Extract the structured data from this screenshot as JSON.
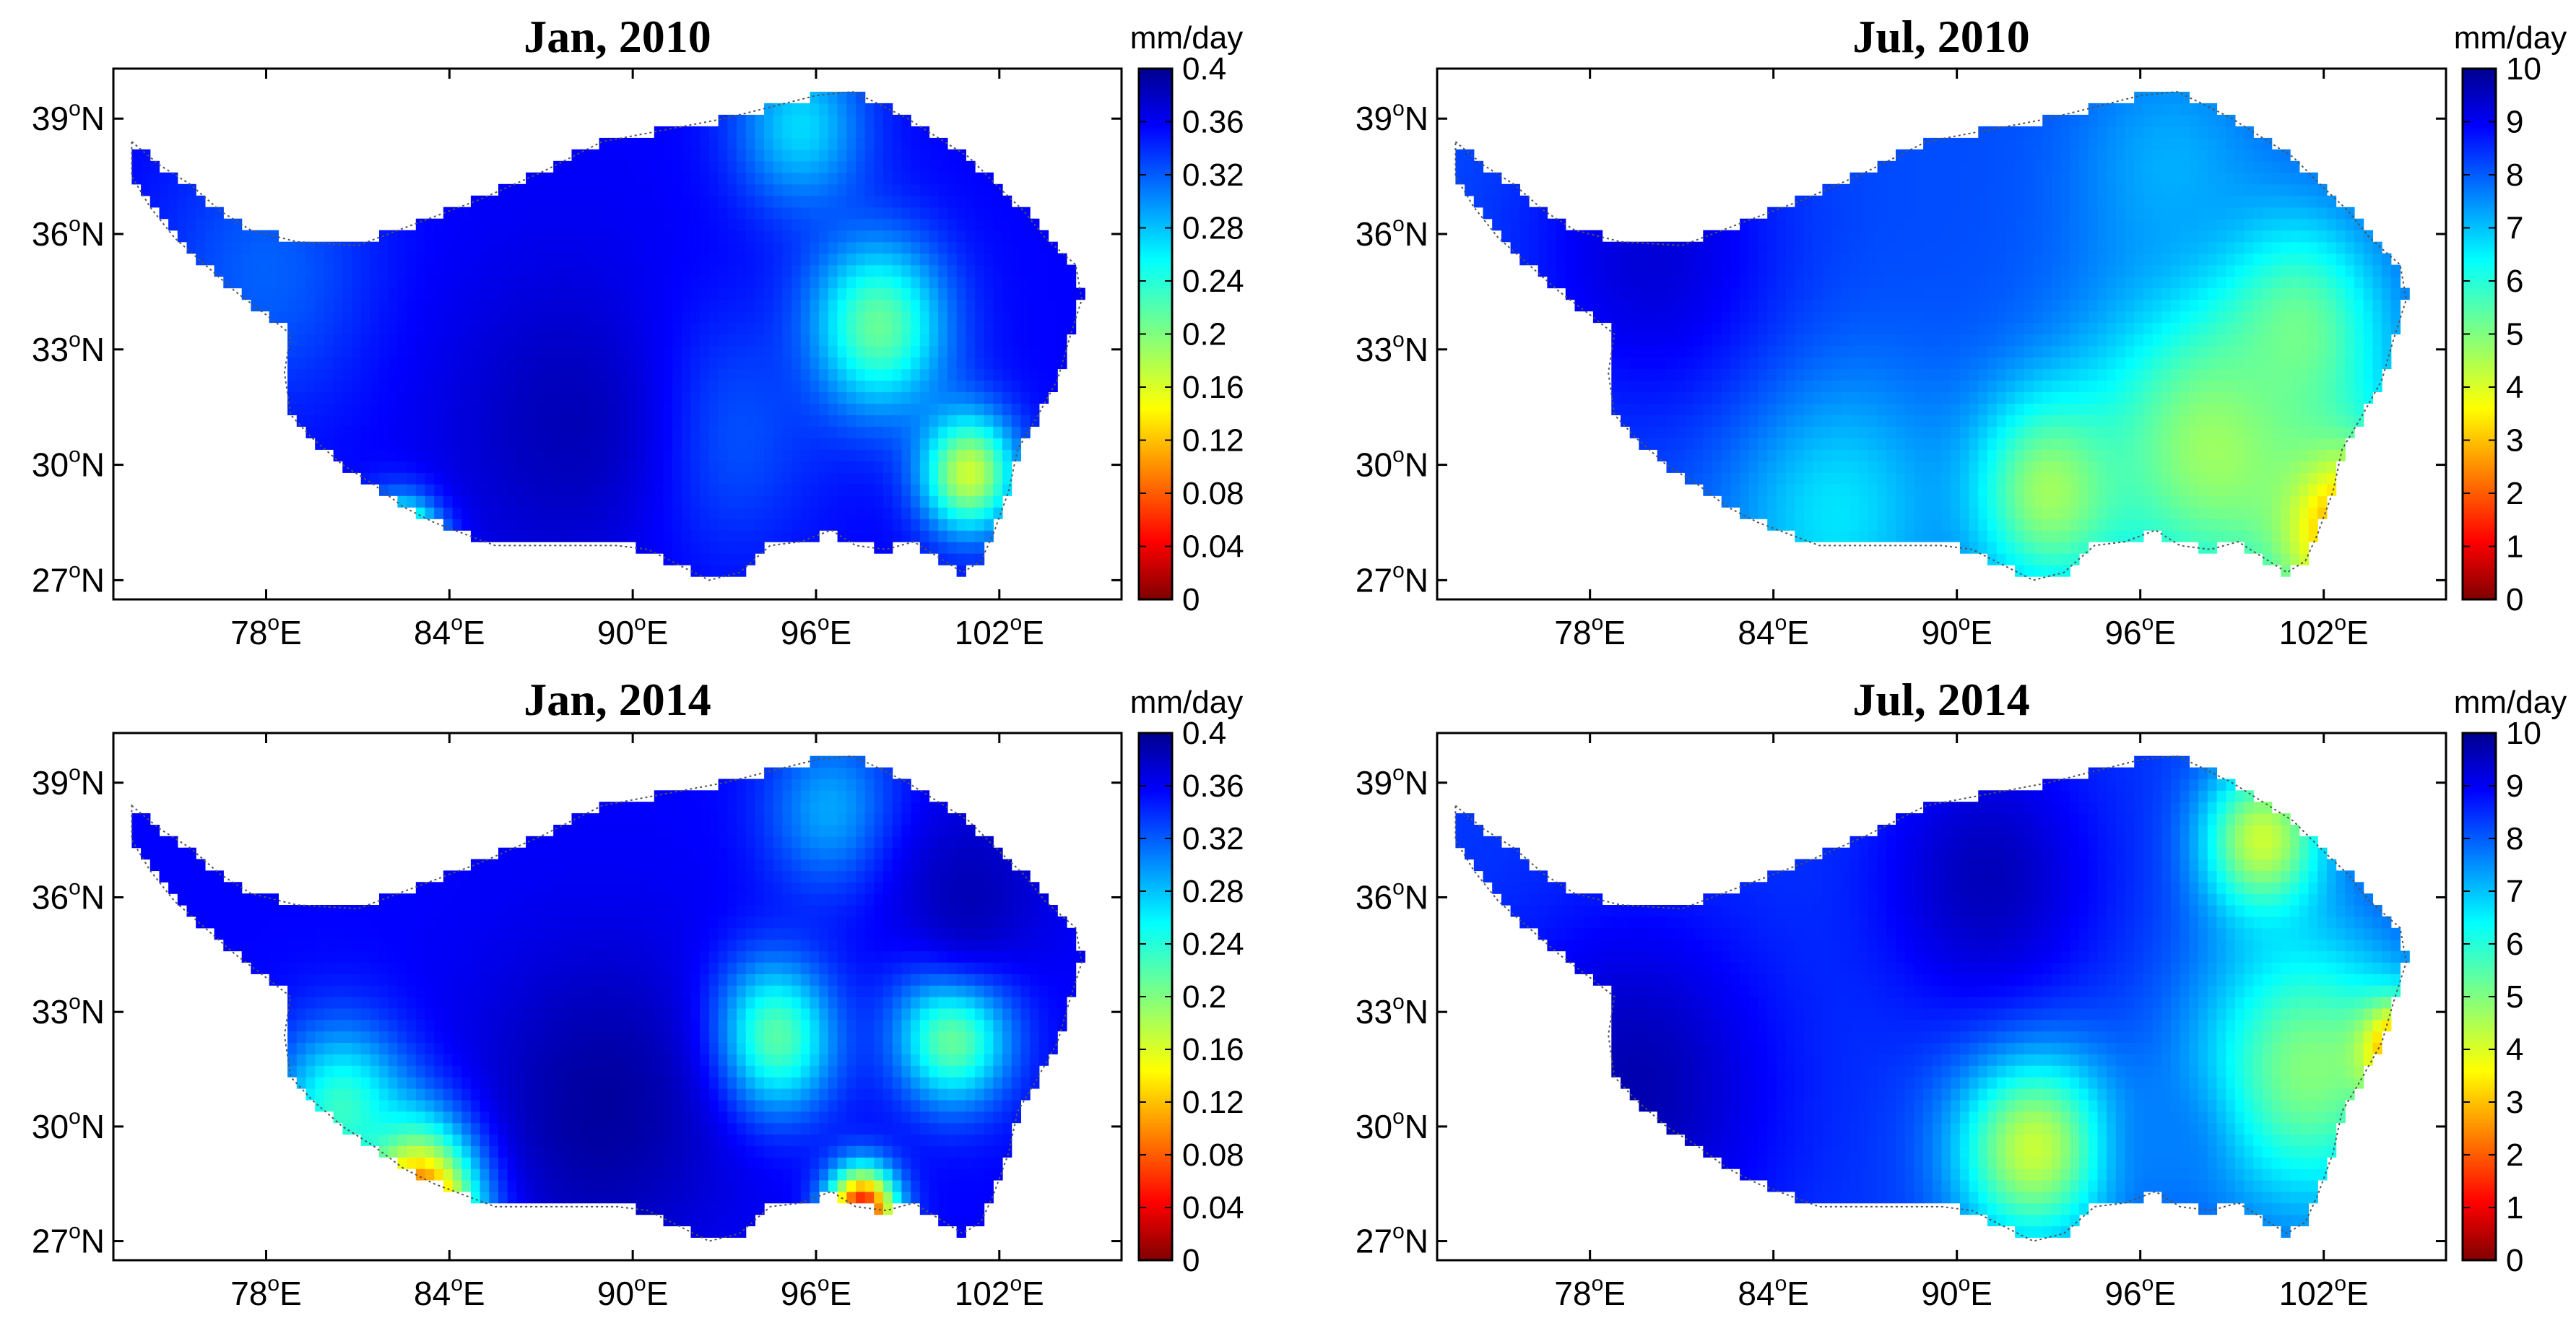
{
  "chart_data": [
    {
      "type": "heatmap",
      "title": "Jan, 2010",
      "colorbar_unit": "mm/day",
      "color_range": [
        0,
        0.4
      ],
      "colorbar_ticks": [
        "0",
        "0.04",
        "0.08",
        "0.12",
        "0.16",
        "0.2",
        "0.24",
        "0.28",
        "0.32",
        "0.36",
        "0.4"
      ],
      "x_ticks": [
        "78",
        "84",
        "90",
        "96",
        "102"
      ],
      "y_ticks": [
        "27",
        "30",
        "33",
        "36",
        "39"
      ],
      "x_suffix": "E",
      "y_suffix": "N",
      "degree_mark": "o",
      "xlim": [
        73,
        106
      ],
      "ylim": [
        26.5,
        40.3
      ],
      "base_value": 0.05,
      "features": [
        {
          "lon": 98.0,
          "lat": 33.6,
          "value": 0.2,
          "spread": 1.6
        },
        {
          "lon": 101.0,
          "lat": 29.8,
          "value": 0.24,
          "spread": 1.1
        },
        {
          "lon": 82.5,
          "lat": 27.6,
          "value": 0.4,
          "spread": 0.9
        },
        {
          "lon": 95.5,
          "lat": 38.8,
          "value": 0.14,
          "spread": 1.5
        },
        {
          "lon": 92.5,
          "lat": 30.8,
          "value": 0.1,
          "spread": 2.2
        },
        {
          "lon": 78.0,
          "lat": 35.0,
          "value": 0.09,
          "spread": 2.5
        },
        {
          "lon": 88.0,
          "lat": 31.0,
          "value": 0.02,
          "spread": 3.0
        }
      ]
    },
    {
      "type": "heatmap",
      "title": "Jul, 2010",
      "colorbar_unit": "mm/day",
      "color_range": [
        0,
        10
      ],
      "colorbar_ticks": [
        "0",
        "1",
        "2",
        "3",
        "4",
        "5",
        "6",
        "7",
        "8",
        "9",
        "10"
      ],
      "x_ticks": [
        "78",
        "84",
        "90",
        "96",
        "102"
      ],
      "y_ticks": [
        "27",
        "30",
        "33",
        "36",
        "39"
      ],
      "x_suffix": "E",
      "y_suffix": "N",
      "degree_mark": "o",
      "xlim": [
        73,
        106
      ],
      "ylim": [
        26.5,
        40.3
      ],
      "base_value": 2.0,
      "features": [
        {
          "lon": 102.5,
          "lat": 28.5,
          "value": 8.5,
          "spread": 1.6
        },
        {
          "lon": 98.5,
          "lat": 30.5,
          "value": 5.5,
          "spread": 3.0
        },
        {
          "lon": 93.0,
          "lat": 29.3,
          "value": 5.5,
          "spread": 1.8
        },
        {
          "lon": 101.0,
          "lat": 33.5,
          "value": 5.0,
          "spread": 2.0
        },
        {
          "lon": 86.0,
          "lat": 28.8,
          "value": 3.6,
          "spread": 2.5
        },
        {
          "lon": 97.0,
          "lat": 37.8,
          "value": 3.0,
          "spread": 2.2
        },
        {
          "lon": 80.0,
          "lat": 35.5,
          "value": 0.8,
          "spread": 3.0
        }
      ]
    },
    {
      "type": "heatmap",
      "title": "Jan, 2014",
      "colorbar_unit": "mm/day",
      "color_range": [
        0,
        0.4
      ],
      "colorbar_ticks": [
        "0",
        "0.04",
        "0.08",
        "0.12",
        "0.16",
        "0.2",
        "0.24",
        "0.28",
        "0.32",
        "0.36",
        "0.4"
      ],
      "x_ticks": [
        "78",
        "84",
        "90",
        "96",
        "102"
      ],
      "y_ticks": [
        "27",
        "30",
        "33",
        "36",
        "39"
      ],
      "x_suffix": "E",
      "y_suffix": "N",
      "degree_mark": "o",
      "xlim": [
        73,
        106
      ],
      "ylim": [
        26.5,
        40.3
      ],
      "base_value": 0.05,
      "features": [
        {
          "lon": 83.0,
          "lat": 28.0,
          "value": 0.4,
          "spread": 1.5
        },
        {
          "lon": 80.5,
          "lat": 30.5,
          "value": 0.18,
          "spread": 1.5
        },
        {
          "lon": 94.5,
          "lat": 32.3,
          "value": 0.22,
          "spread": 1.4
        },
        {
          "lon": 100.5,
          "lat": 32.5,
          "value": 0.22,
          "spread": 1.3
        },
        {
          "lon": 97.5,
          "lat": 27.8,
          "value": 0.38,
          "spread": 0.8
        },
        {
          "lon": 96.5,
          "lat": 38.3,
          "value": 0.12,
          "spread": 1.5
        },
        {
          "lon": 89.0,
          "lat": 30.5,
          "value": 0.01,
          "spread": 3.0
        },
        {
          "lon": 101.0,
          "lat": 36.0,
          "value": 0.02,
          "spread": 1.8
        }
      ]
    },
    {
      "type": "heatmap",
      "title": "Jul, 2014",
      "colorbar_unit": "mm/day",
      "color_range": [
        0,
        10
      ],
      "colorbar_ticks": [
        "0",
        "1",
        "2",
        "3",
        "4",
        "5",
        "6",
        "7",
        "8",
        "9",
        "10"
      ],
      "x_ticks": [
        "78",
        "84",
        "90",
        "96",
        "102"
      ],
      "y_ticks": [
        "27",
        "30",
        "33",
        "36",
        "39"
      ],
      "x_suffix": "E",
      "y_suffix": "N",
      "degree_mark": "o",
      "xlim": [
        73,
        106
      ],
      "ylim": [
        26.5,
        40.3
      ],
      "base_value": 1.8,
      "features": [
        {
          "lon": 100.0,
          "lat": 37.5,
          "value": 6.0,
          "spread": 1.4
        },
        {
          "lon": 92.5,
          "lat": 29.5,
          "value": 6.0,
          "spread": 1.8
        },
        {
          "lon": 101.5,
          "lat": 31.5,
          "value": 5.2,
          "spread": 2.6
        },
        {
          "lon": 104.5,
          "lat": 32.0,
          "value": 8.0,
          "spread": 0.9
        },
        {
          "lon": 97.0,
          "lat": 29.5,
          "value": 2.5,
          "spread": 1.2
        },
        {
          "lon": 79.5,
          "lat": 31.0,
          "value": 0.4,
          "spread": 3.2
        },
        {
          "lon": 91.0,
          "lat": 36.5,
          "value": 0.5,
          "spread": 2.5
        }
      ]
    }
  ]
}
